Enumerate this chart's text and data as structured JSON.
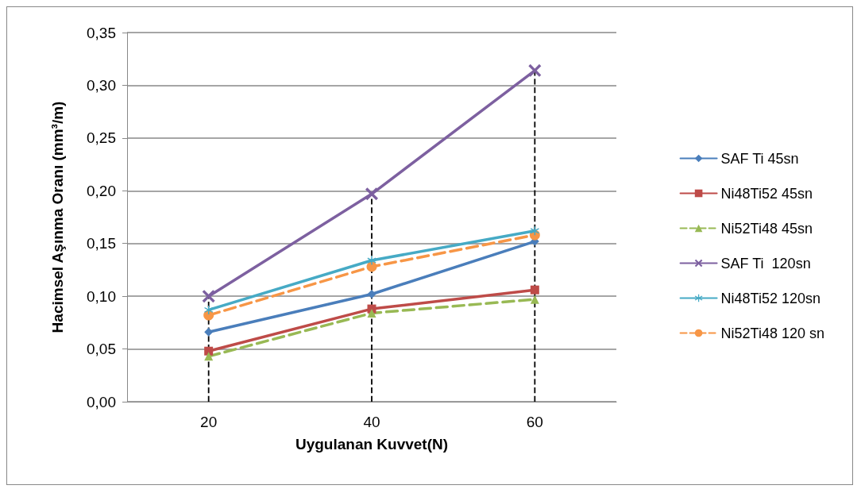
{
  "chart_data": {
    "type": "line",
    "xlabel": "Uygulanan Kuvvet(N)",
    "ylabel": "Hacimsel Aşınma Oranı (mm³/m)",
    "categories": [
      "20",
      "40",
      "60"
    ],
    "series": [
      {
        "name": "SAF Ti 45sn",
        "color": "#4a7ebb",
        "marker": "diamond",
        "line_style": "solid",
        "values": [
          0.066,
          0.102,
          0.152
        ]
      },
      {
        "name": "Ni48Ti52 45sn",
        "color": "#be4b48",
        "marker": "square",
        "line_style": "solid",
        "values": [
          0.048,
          0.088,
          0.106
        ]
      },
      {
        "name": "Ni52Ti48 45sn",
        "color": "#98b954",
        "marker": "triangle",
        "line_style": "dashed",
        "values": [
          0.043,
          0.084,
          0.097
        ]
      },
      {
        "name": "SAF Ti  120sn",
        "color": "#7d60a0",
        "marker": "cross",
        "line_style": "solid",
        "values": [
          0.1,
          0.197,
          0.314
        ]
      },
      {
        "name": "Ni48Ti52 120sn",
        "color": "#46aac5",
        "marker": "star",
        "line_style": "solid",
        "values": [
          0.087,
          0.134,
          0.162
        ]
      },
      {
        "name": "Ni52Ti48 120 sn",
        "color": "#f79646",
        "marker": "circle",
        "line_style": "dashed",
        "values": [
          0.082,
          0.128,
          0.158
        ]
      }
    ],
    "ylim": [
      0,
      0.35
    ],
    "yticks": [
      {
        "value": 0,
        "label": "0,00"
      },
      {
        "value": 0.05,
        "label": "0,05"
      },
      {
        "value": 0.1,
        "label": "0,10"
      },
      {
        "value": 0.15,
        "label": "0,15"
      },
      {
        "value": 0.2,
        "label": "0,20"
      },
      {
        "value": 0.25,
        "label": "0,25"
      },
      {
        "value": 0.3,
        "label": "0,30"
      },
      {
        "value": 0.35,
        "label": "0,35"
      }
    ],
    "ref_lines": [
      {
        "axis": "x",
        "value": "20",
        "color": "#000000",
        "line_style": "dashed"
      },
      {
        "axis": "x",
        "value": "40",
        "color": "#000000",
        "line_style": "dashed"
      },
      {
        "axis": "x",
        "value": "60",
        "color": "#000000",
        "line_style": "dashed"
      }
    ],
    "grid": "y",
    "legend": "right"
  }
}
